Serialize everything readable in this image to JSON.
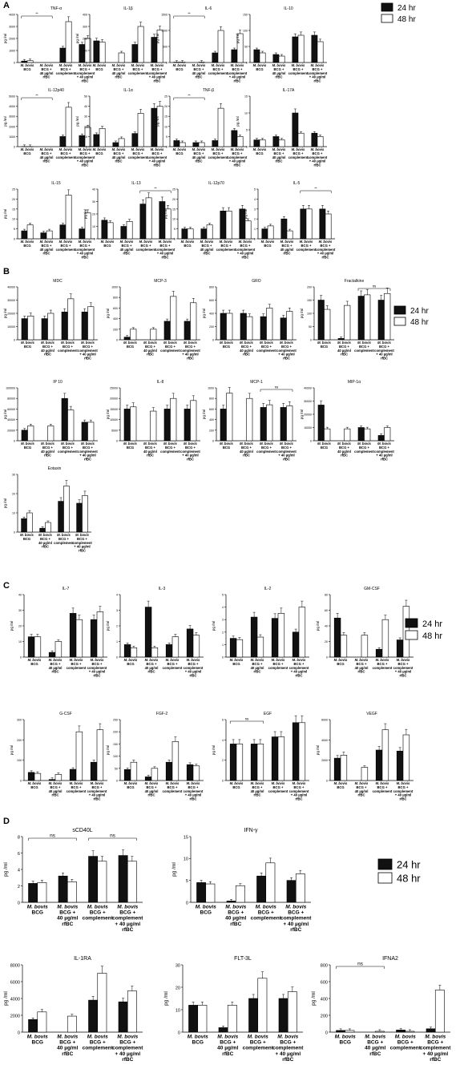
{
  "legend": {
    "label_24": "24 hr",
    "label_48": "48 hr"
  },
  "colors": {
    "bar_24": "#111111",
    "bar_48": "#ffffff",
    "axis": "#000000"
  },
  "panels": [
    {
      "letter": "A"
    },
    {
      "letter": "B"
    },
    {
      "letter": "C"
    },
    {
      "letter": "D"
    }
  ],
  "categories_small": [
    [
      "M. bovis",
      "BCG"
    ],
    [
      "M. bovis",
      "BCG +",
      "40 µg/ml",
      "rfBC"
    ],
    [
      "M. bovis",
      "BCG +",
      "complement"
    ],
    [
      "M. bovis",
      "BCG +",
      "complement",
      "+ 40 µg/ml",
      "rfBC"
    ]
  ],
  "ylabel": "pg /ml",
  "chart_data": [
    {
      "type": "bar",
      "panel": "A",
      "title": "TNF-α",
      "ylim": [
        0,
        4000
      ],
      "ticks": [
        0,
        1000,
        2000,
        3000,
        4000
      ],
      "series": [
        {
          "name": "24 hr",
          "values": [
            120,
            0,
            1200,
            1500
          ]
        },
        {
          "name": "48 hr",
          "values": [
            150,
            0,
            3400,
            2000
          ]
        }
      ],
      "sig": {
        "from": 0,
        "to": 1,
        "label": "**"
      }
    },
    {
      "type": "bar",
      "panel": "A",
      "title": "IL-1β",
      "ylim": [
        0,
        400
      ],
      "ticks": [
        0,
        100,
        200,
        300,
        400
      ],
      "series": [
        {
          "name": "24 hr",
          "values": [
            180,
            0,
            150,
            210
          ]
        },
        {
          "name": "48 hr",
          "values": [
            170,
            80,
            300,
            270
          ]
        }
      ]
    },
    {
      "type": "bar",
      "panel": "A",
      "title": "IL-6",
      "ylim": [
        0,
        1500
      ],
      "ticks": [
        0,
        500,
        1000,
        1500
      ],
      "series": [
        {
          "name": "24 hr",
          "values": [
            10,
            0,
            300,
            400
          ]
        },
        {
          "name": "48 hr",
          "values": [
            10,
            10,
            1000,
            900
          ]
        }
      ],
      "sig": {
        "from": 0,
        "to": 1,
        "label": "**"
      }
    },
    {
      "type": "bar",
      "panel": "A",
      "title": "IL-10",
      "ylim": [
        0,
        150
      ],
      "ticks": [
        0,
        50,
        100,
        150
      ],
      "series": [
        {
          "name": "24 hr",
          "values": [
            40,
            25,
            80,
            85
          ]
        },
        {
          "name": "48 hr",
          "values": [
            30,
            20,
            85,
            65
          ]
        }
      ]
    },
    {
      "type": "bar",
      "panel": "A",
      "title": "IL-12p40",
      "ylim": [
        0,
        5000
      ],
      "ticks": [
        0,
        1000,
        2000,
        3000,
        4000,
        5000
      ],
      "series": [
        {
          "name": "24 hr",
          "values": [
            10,
            0,
            1000,
            1100
          ]
        },
        {
          "name": "48 hr",
          "values": [
            10,
            0,
            3900,
            1900
          ]
        }
      ],
      "sig": {
        "from": 0,
        "to": 1,
        "label": "**"
      }
    },
    {
      "type": "bar",
      "panel": "A",
      "title": "IL-1α",
      "ylim": [
        0,
        50
      ],
      "ticks": [
        0,
        10,
        20,
        30,
        40,
        50
      ],
      "series": [
        {
          "name": "24 hr",
          "values": [
            12,
            4,
            13,
            38
          ]
        },
        {
          "name": "48 hr",
          "values": [
            18,
            8,
            33,
            40
          ]
        }
      ]
    },
    {
      "type": "bar",
      "panel": "A",
      "title": "TNF-β",
      "ylim": [
        0,
        25
      ],
      "ticks": [
        0,
        5,
        10,
        15,
        20,
        25
      ],
      "series": [
        {
          "name": "24 hr",
          "values": [
            3,
            2,
            3,
            8
          ]
        },
        {
          "name": "48 hr",
          "values": [
            2,
            2,
            19,
            5
          ]
        }
      ],
      "sig": {
        "from": 0,
        "to": 1,
        "label": "**"
      }
    },
    {
      "type": "bar",
      "panel": "A",
      "title": "IL-17A",
      "ylim": [
        0,
        15
      ],
      "ticks": [
        0,
        5,
        10,
        15
      ],
      "series": [
        {
          "name": "24 hr",
          "values": [
            2,
            3,
            10,
            4
          ]
        },
        {
          "name": "48 hr",
          "values": [
            2,
            2,
            4,
            3
          ]
        }
      ]
    },
    {
      "type": "bar",
      "panel": "B0",
      "title": "IL-15",
      "ylim": [
        0,
        25
      ],
      "ticks": [
        0,
        5,
        10,
        15,
        20,
        25
      ],
      "series": [
        {
          "name": "24 hr",
          "values": [
            4,
            3,
            7,
            5
          ]
        },
        {
          "name": "48 hr",
          "values": [
            7,
            4,
            22,
            13
          ]
        }
      ]
    },
    {
      "type": "bar",
      "panel": "B0",
      "title": "IL-13",
      "ylim": [
        0,
        40
      ],
      "ticks": [
        0,
        10,
        20,
        30,
        40
      ],
      "series": [
        {
          "name": "24 hr",
          "values": [
            15,
            10,
            28,
            30
          ]
        },
        {
          "name": "48 hr",
          "values": [
            13,
            14,
            33,
            24
          ]
        }
      ],
      "sig": {
        "from": 2,
        "to": 3,
        "label": "**"
      }
    },
    {
      "type": "bar",
      "panel": "B0",
      "title": "IL-12p70",
      "ylim": [
        0,
        25
      ],
      "ticks": [
        0,
        5,
        10,
        15,
        20,
        25
      ],
      "series": [
        {
          "name": "24 hr",
          "values": [
            5,
            5,
            14,
            15
          ]
        },
        {
          "name": "48 hr",
          "values": [
            5,
            7,
            14,
            9
          ]
        }
      ]
    },
    {
      "type": "bar",
      "panel": "B0",
      "title": "IL-5",
      "ylim": [
        0,
        5
      ],
      "ticks": [
        0,
        1,
        2,
        3,
        4,
        5
      ],
      "series": [
        {
          "name": "24 hr",
          "values": [
            1,
            2,
            3,
            3
          ]
        },
        {
          "name": "48 hr",
          "values": [
            1.3,
            0.8,
            3,
            2.5
          ]
        }
      ],
      "sig": {
        "from": 2,
        "to": 3,
        "label": "**"
      }
    },
    {
      "type": "bar",
      "panel": "B",
      "title": "MDC",
      "ylim": [
        0,
        40000
      ],
      "ticks": [
        0,
        10000,
        20000,
        30000,
        40000
      ],
      "series": [
        {
          "name": "24 hr",
          "values": [
            16000,
            16000,
            21000,
            21000
          ]
        },
        {
          "name": "48 hr",
          "values": [
            18000,
            20000,
            31000,
            25000
          ]
        }
      ]
    },
    {
      "type": "bar",
      "panel": "B",
      "title": "MCP-3",
      "ylim": [
        0,
        1000
      ],
      "ticks": [
        0,
        200,
        400,
        600,
        800,
        1000
      ],
      "series": [
        {
          "name": "24 hr",
          "values": [
            50,
            0,
            350,
            350
          ]
        },
        {
          "name": "48 hr",
          "values": [
            200,
            200,
            820,
            700
          ]
        }
      ]
    },
    {
      "type": "bar",
      "panel": "B",
      "title": "GRO",
      "ylim": [
        0,
        800
      ],
      "ticks": [
        0,
        200,
        400,
        600,
        800
      ],
      "series": [
        {
          "name": "24 hr",
          "values": [
            400,
            400,
            350,
            330
          ]
        },
        {
          "name": "48 hr",
          "values": [
            400,
            350,
            480,
            430
          ]
        }
      ]
    },
    {
      "type": "bar",
      "panel": "B",
      "title": "Fractalkine",
      "ylim": [
        0,
        200
      ],
      "ticks": [
        0,
        50,
        100,
        150,
        200
      ],
      "series": [
        {
          "name": "24 hr",
          "values": [
            150,
            5,
            165,
            150
          ]
        },
        {
          "name": "48 hr",
          "values": [
            115,
            130,
            170,
            175
          ]
        }
      ],
      "sig": {
        "from": 2,
        "to": 3,
        "label": "ns"
      }
    },
    {
      "type": "bar",
      "panel": "B1",
      "title": "IP 10",
      "ylim": [
        0,
        100000
      ],
      "ticks": [
        0,
        20000,
        40000,
        60000,
        80000,
        100000
      ],
      "series": [
        {
          "name": "24 hr",
          "values": [
            20000,
            0,
            80000,
            35000
          ]
        },
        {
          "name": "48 hr",
          "values": [
            28000,
            28000,
            58000,
            35000
          ]
        }
      ]
    },
    {
      "type": "bar",
      "panel": "B1",
      "title": "IL-8",
      "ylim": [
        0,
        25000
      ],
      "ticks": [
        0,
        5000,
        10000,
        15000,
        20000,
        25000
      ],
      "series": [
        {
          "name": "24 hr",
          "values": [
            15000,
            0,
            15000,
            15000
          ]
        },
        {
          "name": "48 hr",
          "values": [
            16000,
            14000,
            20000,
            19000
          ]
        }
      ]
    },
    {
      "type": "bar",
      "panel": "B1",
      "title": "MCP-1",
      "ylim": [
        0,
        1000
      ],
      "ticks": [
        0,
        200,
        400,
        600,
        800,
        1000
      ],
      "series": [
        {
          "name": "24 hr",
          "values": [
            600,
            0,
            630,
            630
          ]
        },
        {
          "name": "48 hr",
          "values": [
            900,
            800,
            680,
            660
          ]
        }
      ],
      "sig": {
        "from": 2,
        "to": 3,
        "label": "ns"
      }
    },
    {
      "type": "bar",
      "panel": "B1",
      "title": "MIP-1α",
      "ylim": [
        0,
        40000
      ],
      "ticks": [
        0,
        10000,
        20000,
        30000,
        40000
      ],
      "series": [
        {
          "name": "24 hr",
          "values": [
            27000,
            0,
            10000,
            4000
          ]
        },
        {
          "name": "48 hr",
          "values": [
            9000,
            9000,
            9000,
            10000
          ]
        }
      ]
    },
    {
      "type": "bar",
      "panel": "B2",
      "title": "Eotaxin",
      "ylim": [
        0,
        30
      ],
      "ticks": [
        0,
        10,
        20,
        30
      ],
      "series": [
        {
          "name": "24 hr",
          "values": [
            7,
            2,
            16,
            15
          ]
        },
        {
          "name": "48 hr",
          "values": [
            10,
            5,
            24,
            19
          ]
        }
      ]
    },
    {
      "type": "bar",
      "panel": "C",
      "title": "IL-7",
      "ylim": [
        0,
        40
      ],
      "ticks": [
        0,
        10,
        20,
        30,
        40
      ],
      "series": [
        {
          "name": "24 hr",
          "values": [
            13,
            3,
            28,
            24
          ]
        },
        {
          "name": "48 hr",
          "values": [
            13,
            10,
            24,
            29
          ]
        }
      ]
    },
    {
      "type": "bar",
      "panel": "C",
      "title": "IL-3",
      "ylim": [
        0,
        4
      ],
      "ticks": [
        0,
        1,
        2,
        3,
        4
      ],
      "series": [
        {
          "name": "24 hr",
          "values": [
            0.8,
            3.2,
            0.8,
            1.8
          ]
        },
        {
          "name": "48 hr",
          "values": [
            0.6,
            0.6,
            1.3,
            1.4
          ]
        }
      ]
    },
    {
      "type": "bar",
      "panel": "C",
      "title": "IL-2",
      "ylim": [
        0,
        5
      ],
      "ticks": [
        0,
        1,
        2,
        3,
        4,
        5
      ],
      "series": [
        {
          "name": "24 hr",
          "values": [
            1.5,
            3.2,
            3.1,
            2.0
          ]
        },
        {
          "name": "48 hr",
          "values": [
            1.4,
            1.6,
            3.5,
            4.0
          ]
        }
      ]
    },
    {
      "type": "bar",
      "panel": "C",
      "title": "GM-CSF",
      "ylim": [
        0,
        80
      ],
      "ticks": [
        0,
        20,
        40,
        60,
        80
      ],
      "series": [
        {
          "name": "24 hr",
          "values": [
            50,
            0,
            10,
            22
          ]
        },
        {
          "name": "48 hr",
          "values": [
            28,
            28,
            48,
            65
          ]
        }
      ]
    },
    {
      "type": "bar",
      "panel": "C1",
      "title": "G-CSF",
      "ylim": [
        0,
        300
      ],
      "ticks": [
        0,
        100,
        200,
        300
      ],
      "series": [
        {
          "name": "24 hr",
          "values": [
            40,
            5,
            55,
            90
          ]
        },
        {
          "name": "48 hr",
          "values": [
            35,
            30,
            240,
            250
          ]
        }
      ]
    },
    {
      "type": "bar",
      "panel": "C1",
      "title": "FGF-2",
      "ylim": [
        0,
        250
      ],
      "ticks": [
        0,
        50,
        100,
        150,
        200,
        250
      ],
      "series": [
        {
          "name": "24 hr",
          "values": [
            45,
            15,
            75,
            65
          ]
        },
        {
          "name": "48 hr",
          "values": [
            75,
            50,
            160,
            60
          ]
        }
      ]
    },
    {
      "type": "bar",
      "panel": "C1",
      "title": "EGF",
      "ylim": [
        0,
        6
      ],
      "ticks": [
        0,
        2,
        4,
        6
      ],
      "series": [
        {
          "name": "24 hr",
          "values": [
            3.6,
            3.6,
            4.3,
            5.7
          ]
        },
        {
          "name": "48 hr",
          "values": [
            3.6,
            3.6,
            4.3,
            5.7
          ]
        }
      ],
      "sig": {
        "from": 0,
        "to": 1,
        "label": "ns"
      }
    },
    {
      "type": "bar",
      "panel": "C1",
      "title": "VEGF",
      "ylim": [
        0,
        6000
      ],
      "ticks": [
        0,
        2000,
        4000,
        6000
      ],
      "series": [
        {
          "name": "24 hr",
          "values": [
            2200,
            0,
            3000,
            2900
          ]
        },
        {
          "name": "48 hr",
          "values": [
            2500,
            1300,
            5000,
            4500
          ]
        }
      ]
    },
    {
      "type": "bar",
      "panel": "D",
      "title": "sCD40L",
      "ylim": [
        0,
        8
      ],
      "ticks": [
        0,
        2,
        4,
        6,
        8
      ],
      "series": [
        {
          "name": "24 hr",
          "values": [
            2.3,
            3.2,
            5.6,
            5.7
          ]
        },
        {
          "name": "48 hr",
          "values": [
            2.4,
            2.5,
            5.0,
            5.0
          ]
        }
      ],
      "sig": {
        "from": 0,
        "to": 1,
        "label": "ns"
      },
      "sig2": {
        "from": 2,
        "to": 3,
        "label": "ns"
      }
    },
    {
      "type": "bar",
      "panel": "D",
      "title": "IFN-γ",
      "ylim": [
        0,
        15
      ],
      "ticks": [
        0,
        5,
        10,
        15
      ],
      "series": [
        {
          "name": "24 hr",
          "values": [
            4.5,
            0.3,
            6.0,
            5.0
          ]
        },
        {
          "name": "48 hr",
          "values": [
            4.2,
            3.8,
            9.0,
            6.5
          ]
        }
      ]
    },
    {
      "type": "bar",
      "panel": "D1",
      "title": "IL-1RA",
      "ylim": [
        0,
        8000
      ],
      "ticks": [
        0,
        2000,
        4000,
        6000,
        8000
      ],
      "series": [
        {
          "name": "24 hr",
          "values": [
            1500,
            0,
            3800,
            3600
          ]
        },
        {
          "name": "48 hr",
          "values": [
            2400,
            1900,
            7000,
            4900
          ]
        }
      ]
    },
    {
      "type": "bar",
      "panel": "D1",
      "title": "FLT-3L",
      "ylim": [
        0,
        30
      ],
      "ticks": [
        0,
        10,
        20,
        30
      ],
      "series": [
        {
          "name": "24 hr",
          "values": [
            12,
            2,
            15,
            15
          ]
        },
        {
          "name": "48 hr",
          "values": [
            12,
            12,
            24,
            18
          ]
        }
      ]
    },
    {
      "type": "bar",
      "panel": "D1",
      "title": "IFNA2",
      "ylim": [
        0,
        800
      ],
      "ticks": [
        0,
        200,
        400,
        600,
        800
      ],
      "series": [
        {
          "name": "24 hr",
          "values": [
            20,
            0,
            25,
            40
          ]
        },
        {
          "name": "48 hr",
          "values": [
            20,
            10,
            10,
            500
          ]
        }
      ],
      "sig": {
        "from": 0,
        "to": 1,
        "label": "ns"
      }
    }
  ]
}
